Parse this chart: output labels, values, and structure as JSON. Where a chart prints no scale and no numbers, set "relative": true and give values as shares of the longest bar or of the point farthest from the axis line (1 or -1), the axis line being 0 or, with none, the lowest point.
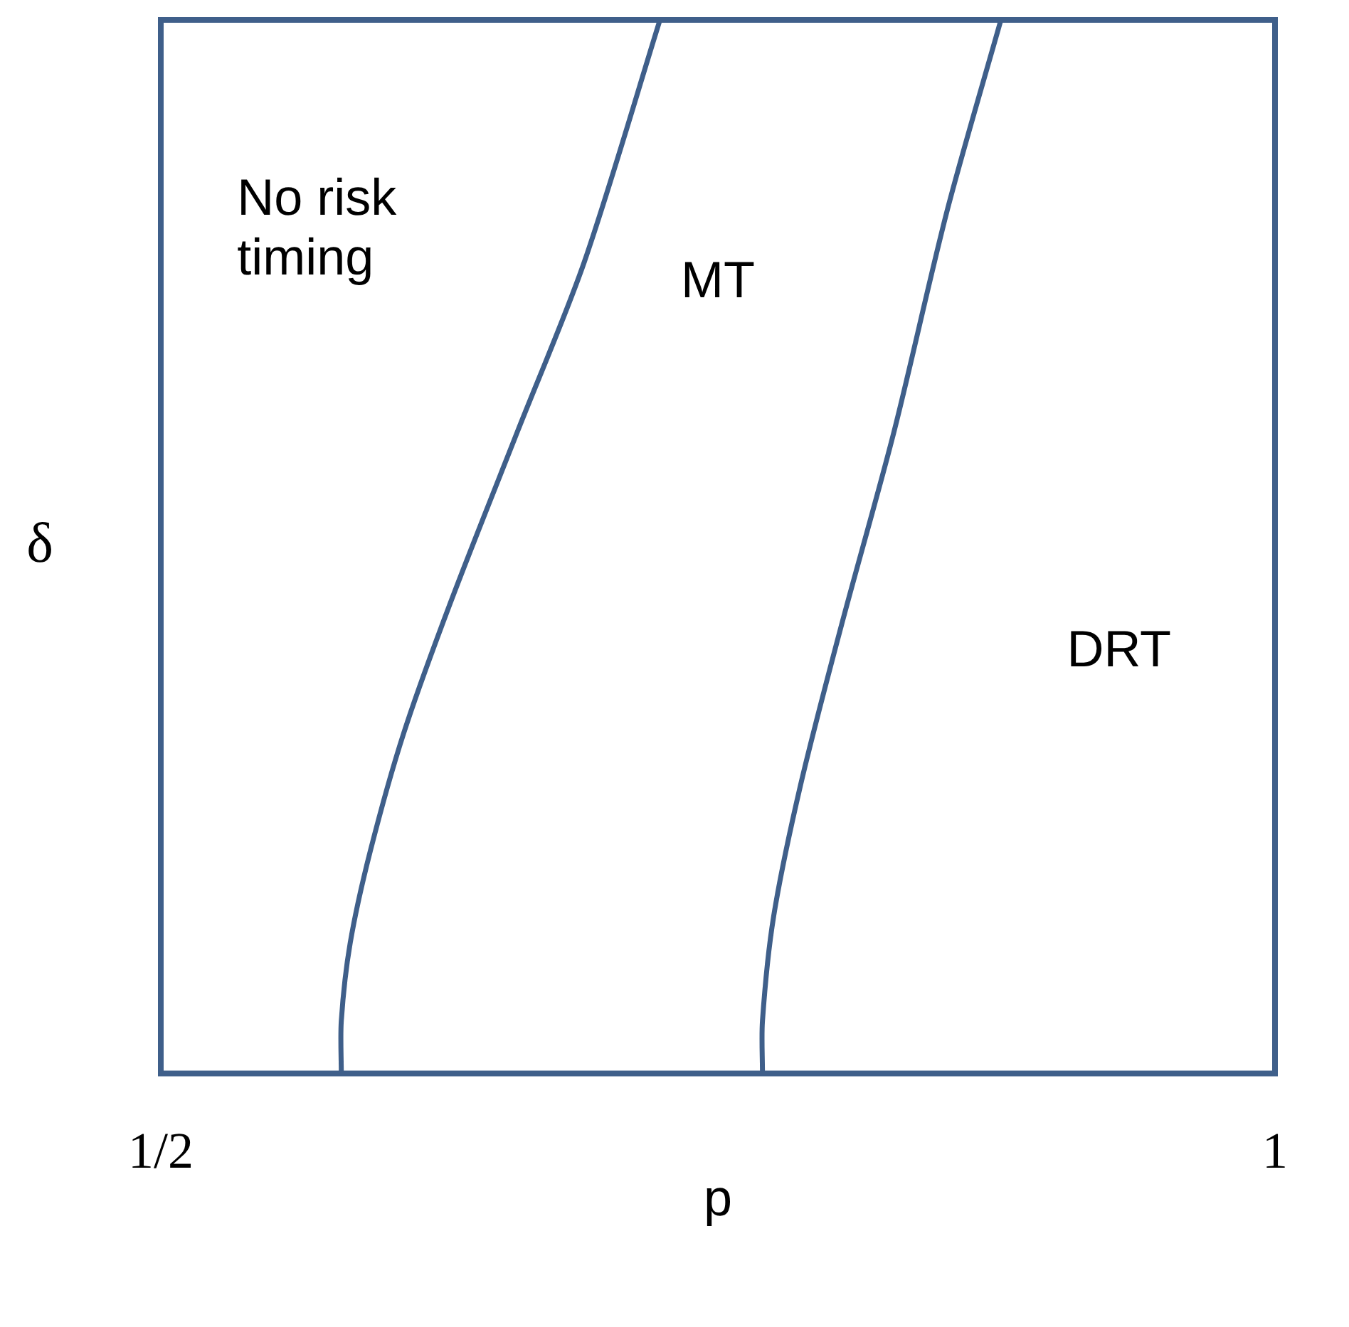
{
  "chart_data": {
    "type": "line",
    "xlabel": "p",
    "ylabel": "δ",
    "relative": true,
    "legend": false,
    "marker": "none",
    "line_style": "solid",
    "xlim": [
      0.5,
      1
    ],
    "xticks": [
      {
        "value": 0.5,
        "label": "1/2"
      },
      {
        "value": 1,
        "label": "1"
      }
    ],
    "series": [
      {
        "color": "#3f5f8a",
        "x": [
          0.581,
          0.581,
          0.585,
          0.594,
          0.609,
          0.63,
          0.66,
          0.69,
          0.724
        ],
        "values": [
          0,
          0.05,
          0.124,
          0.211,
          0.323,
          0.447,
          0.609,
          0.77,
          1
        ]
      },
      {
        "color": "#3f5f8a",
        "x": [
          0.77,
          0.77,
          0.775,
          0.787,
          0.805,
          0.829,
          0.853,
          0.877
        ],
        "values": [
          0,
          0.05,
          0.149,
          0.273,
          0.422,
          0.609,
          0.82,
          1
        ]
      }
    ],
    "annotations": [
      "No risk timing",
      "MT",
      "DRT"
    ]
  }
}
